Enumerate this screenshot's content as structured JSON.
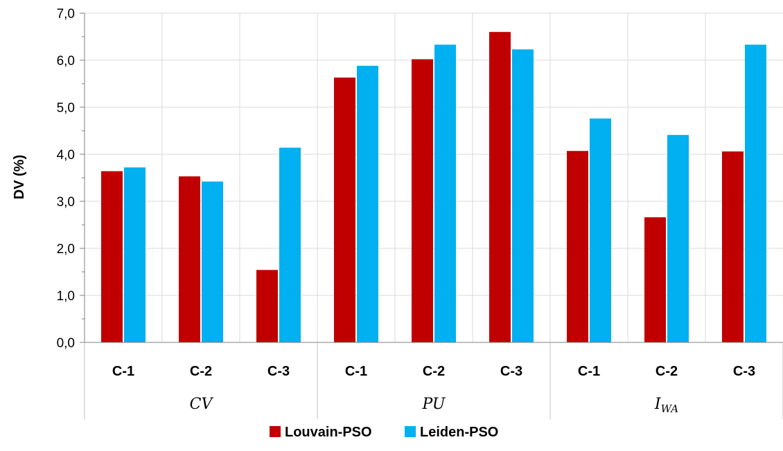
{
  "chart_data": {
    "type": "bar",
    "ylabel": "DV (%)",
    "ylim": [
      0,
      7
    ],
    "yticks": [
      "0,0",
      "1,0",
      "2,0",
      "3,0",
      "4,0",
      "5,0",
      "6,0",
      "7,0"
    ],
    "grid": true,
    "legend_position": "bottom",
    "categories": [
      "C-1",
      "C-2",
      "C-3",
      "C-1",
      "C-2",
      "C-3",
      "C-1",
      "C-2",
      "C-3"
    ],
    "groups": [
      {
        "label": "CV",
        "sub": ""
      },
      {
        "label": "PU",
        "sub": ""
      },
      {
        "label": "I",
        "sub": "WA"
      }
    ],
    "series": [
      {
        "name": "Louvain-PSO",
        "color": "#C00000",
        "values": [
          3.64,
          3.53,
          1.54,
          5.63,
          6.02,
          6.6,
          4.07,
          2.66,
          4.06
        ]
      },
      {
        "name": "Leiden-PSO",
        "color": "#00B0F0",
        "values": [
          3.72,
          3.42,
          4.14,
          5.88,
          6.33,
          6.23,
          4.76,
          4.41,
          6.33
        ]
      }
    ]
  }
}
